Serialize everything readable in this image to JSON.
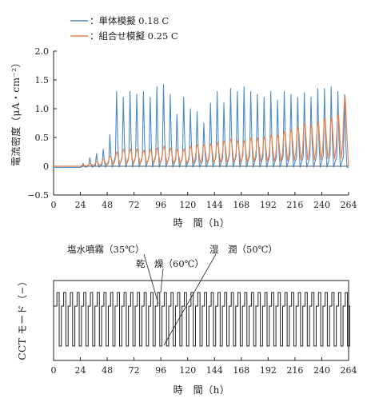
{
  "chart_data": [
    {
      "type": "line",
      "xlabel": "時　間（h）",
      "ylabel": "電流密度（μA・cm⁻²）",
      "xlim": [
        0,
        264
      ],
      "ylim": [
        -0.5,
        2.0
      ],
      "x_ticks": [
        0,
        24,
        48,
        72,
        96,
        120,
        144,
        168,
        192,
        216,
        240,
        264
      ],
      "y_ticks": [
        -0.5,
        0,
        0.5,
        1.0,
        1.5,
        2.0
      ],
      "x_tick_labels": [
        "0",
        "24",
        "48",
        "72",
        "96",
        "120",
        "144",
        "168",
        "192",
        "216",
        "240",
        "264"
      ],
      "y_tick_labels": [
        "−0.5",
        "0",
        "0.5",
        "1.0",
        "1.5",
        "2.0"
      ],
      "grid": false,
      "legend_position": "top-left",
      "cycle_hours": 6,
      "series": [
        {
          "name": "：単体模擬 0.18 C",
          "color": "#4a8cc7",
          "peaks": [
            {
              "x": 27,
              "y": 0.05
            },
            {
              "x": 33,
              "y": 0.15
            },
            {
              "x": 39,
              "y": 0.22
            },
            {
              "x": 45,
              "y": 0.3
            },
            {
              "x": 51,
              "y": 0.55
            },
            {
              "x": 57,
              "y": 1.3
            },
            {
              "x": 63,
              "y": 1.2
            },
            {
              "x": 69,
              "y": 1.3
            },
            {
              "x": 75,
              "y": 1.25
            },
            {
              "x": 81,
              "y": 1.3
            },
            {
              "x": 87,
              "y": 1.2
            },
            {
              "x": 93,
              "y": 1.38
            },
            {
              "x": 99,
              "y": 1.42
            },
            {
              "x": 105,
              "y": 1.25
            },
            {
              "x": 111,
              "y": 0.9
            },
            {
              "x": 117,
              "y": 1.2
            },
            {
              "x": 123,
              "y": 1.0
            },
            {
              "x": 129,
              "y": 0.95
            },
            {
              "x": 135,
              "y": 0.75
            },
            {
              "x": 141,
              "y": 1.1
            },
            {
              "x": 147,
              "y": 1.3
            },
            {
              "x": 153,
              "y": 1.1
            },
            {
              "x": 159,
              "y": 1.35
            },
            {
              "x": 165,
              "y": 1.3
            },
            {
              "x": 171,
              "y": 1.38
            },
            {
              "x": 177,
              "y": 1.3
            },
            {
              "x": 183,
              "y": 1.25
            },
            {
              "x": 189,
              "y": 1.2
            },
            {
              "x": 195,
              "y": 1.3
            },
            {
              "x": 201,
              "y": 1.15
            },
            {
              "x": 207,
              "y": 1.3
            },
            {
              "x": 213,
              "y": 1.25
            },
            {
              "x": 219,
              "y": 1.2
            },
            {
              "x": 225,
              "y": 1.28
            },
            {
              "x": 231,
              "y": 1.2
            },
            {
              "x": 237,
              "y": 1.35
            },
            {
              "x": 243,
              "y": 1.35
            },
            {
              "x": 249,
              "y": 1.38
            },
            {
              "x": 255,
              "y": 1.3
            },
            {
              "x": 261,
              "y": 1.25
            }
          ],
          "baseline": -0.02
        },
        {
          "name": "：組合せ模擬 0.25 C",
          "color": "#e8834a",
          "peaks": [
            {
              "x": 27,
              "y": 0.02
            },
            {
              "x": 33,
              "y": 0.05
            },
            {
              "x": 39,
              "y": 0.08
            },
            {
              "x": 45,
              "y": 0.12
            },
            {
              "x": 51,
              "y": 0.18
            },
            {
              "x": 57,
              "y": 0.25
            },
            {
              "x": 63,
              "y": 0.3
            },
            {
              "x": 69,
              "y": 0.3
            },
            {
              "x": 75,
              "y": 0.3
            },
            {
              "x": 81,
              "y": 0.28
            },
            {
              "x": 87,
              "y": 0.3
            },
            {
              "x": 93,
              "y": 0.32
            },
            {
              "x": 99,
              "y": 0.35
            },
            {
              "x": 105,
              "y": 0.32
            },
            {
              "x": 111,
              "y": 0.3
            },
            {
              "x": 117,
              "y": 0.3
            },
            {
              "x": 123,
              "y": 0.35
            },
            {
              "x": 129,
              "y": 0.38
            },
            {
              "x": 135,
              "y": 0.38
            },
            {
              "x": 141,
              "y": 0.4
            },
            {
              "x": 147,
              "y": 0.42
            },
            {
              "x": 153,
              "y": 0.45
            },
            {
              "x": 159,
              "y": 0.48
            },
            {
              "x": 165,
              "y": 0.45
            },
            {
              "x": 171,
              "y": 0.45
            },
            {
              "x": 177,
              "y": 0.5
            },
            {
              "x": 183,
              "y": 0.5
            },
            {
              "x": 189,
              "y": 0.52
            },
            {
              "x": 195,
              "y": 0.55
            },
            {
              "x": 201,
              "y": 0.55
            },
            {
              "x": 207,
              "y": 0.62
            },
            {
              "x": 213,
              "y": 0.65
            },
            {
              "x": 219,
              "y": 0.7
            },
            {
              "x": 225,
              "y": 0.75
            },
            {
              "x": 231,
              "y": 0.72
            },
            {
              "x": 237,
              "y": 0.78
            },
            {
              "x": 243,
              "y": 0.85
            },
            {
              "x": 249,
              "y": 0.85
            },
            {
              "x": 255,
              "y": 0.9
            },
            {
              "x": 261,
              "y": 1.2
            }
          ],
          "baseline": 0.0
        }
      ]
    },
    {
      "type": "line",
      "xlabel": "時　間（h）",
      "ylabel": "CCT モード（−）",
      "xlim": [
        0,
        264
      ],
      "x_ticks": [
        0,
        24,
        48,
        72,
        96,
        120,
        144,
        168,
        192,
        216,
        240,
        264
      ],
      "x_tick_labels": [
        "0",
        "24",
        "48",
        "72",
        "96",
        "120",
        "144",
        "168",
        "192",
        "216",
        "240",
        "264"
      ],
      "grid": false,
      "cycle_hours": 6,
      "levels": [
        "塩水噴霧（35℃）",
        "乾　燥（60℃）",
        "湿　潤（50℃）"
      ],
      "phases_per_cycle": [
        {
          "mode": "塩水噴霧（35℃）",
          "level": 1,
          "hours": 2
        },
        {
          "mode": "乾　燥（60℃）",
          "level": 2,
          "hours": 2
        },
        {
          "mode": "湿　潤（50℃）",
          "level": 0,
          "hours": 2
        }
      ],
      "annotations": [
        {
          "text": "塩水噴霧（35℃）",
          "points_to_x": 93
        },
        {
          "text": "乾　燥（60℃）",
          "points_to_x": 96
        },
        {
          "text": "湿　潤（50℃）",
          "points_to_x": 98
        }
      ]
    }
  ]
}
